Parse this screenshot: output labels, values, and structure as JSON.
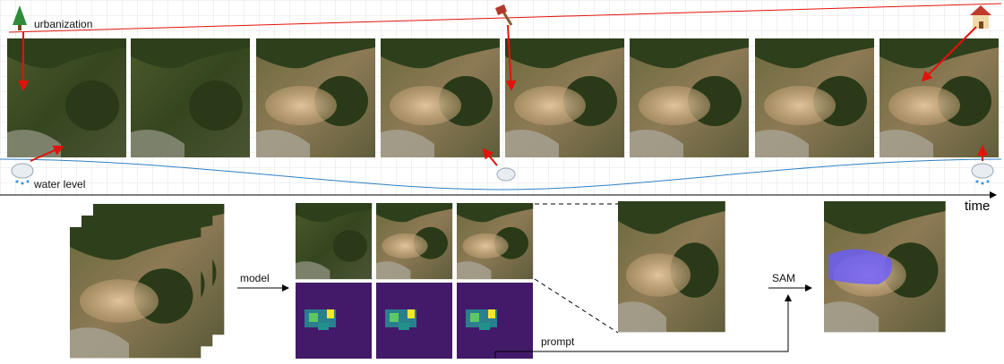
{
  "labels": {
    "urbanization": "urbanization",
    "water_level": "water level",
    "time": "time",
    "model": "model",
    "sam": "SAM",
    "prompt": "prompt"
  }
}
